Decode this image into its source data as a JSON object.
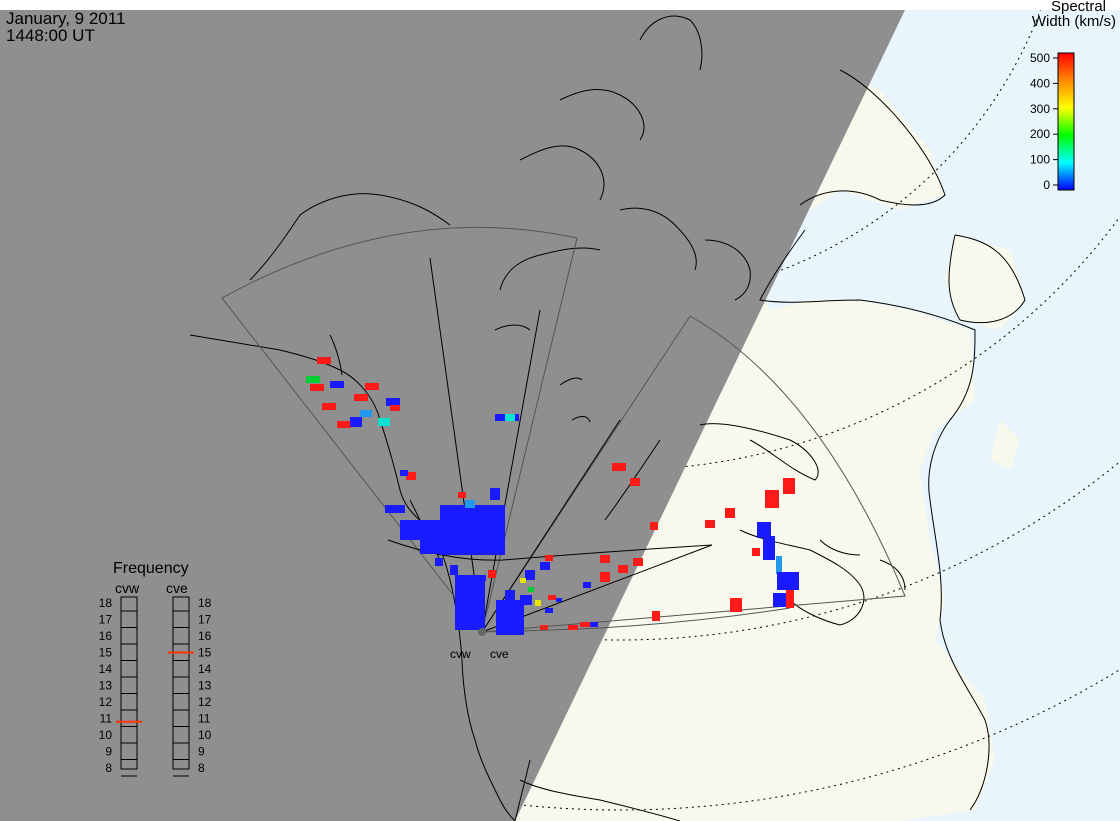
{
  "header": {
    "date": "January, 9 2011",
    "time": "1448:00 UT"
  },
  "colorbar": {
    "title_line1": "Spectral",
    "title_line2": "Width (km/s)",
    "ticks": [
      "500",
      "400",
      "300",
      "200",
      "100",
      "0"
    ],
    "min": 0,
    "max": 500
  },
  "frequency_panel": {
    "title": "Frequency",
    "left_station": "cvw",
    "right_station": "cve",
    "scale": [
      "18",
      "17",
      "16",
      "15",
      "14",
      "13",
      "12",
      "11",
      "10",
      "9",
      "8"
    ],
    "cvw_value": 10.8,
    "cve_value": 15.0,
    "marker_color": "#ff3300"
  },
  "radar_labels": {
    "west": "cvw",
    "east": "cve"
  },
  "colors": {
    "night": "#8f8f8f",
    "ocean_day": "#e8f5fc",
    "land_day": "#f8f8ec",
    "sw_low": "#1a1aff",
    "sw_mid": "#00cc33",
    "sw_high": "#ff1a1a"
  }
}
